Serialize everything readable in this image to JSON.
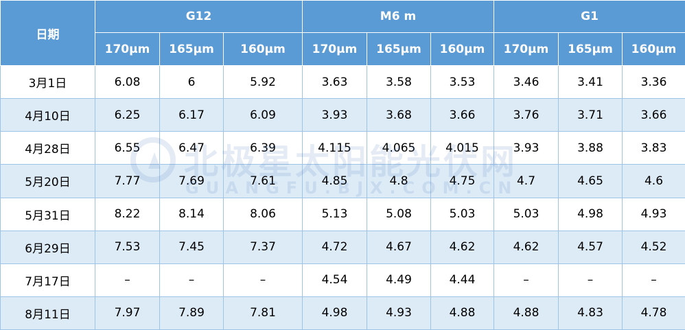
{
  "header": {
    "date_label": "日期",
    "groups": [
      "G12",
      "M6 m",
      "G1"
    ],
    "thicknesses": [
      "170μm",
      "165μm",
      "160μm",
      "170μm",
      "165μm",
      "160μm",
      "170μm",
      "165μm",
      "160μm"
    ]
  },
  "rows": [
    {
      "date": "3月1日",
      "values": [
        "6.08",
        "6",
        "5.92",
        "3.63",
        "3.58",
        "3.53",
        "3.46",
        "3.41",
        "3.36"
      ]
    },
    {
      "date": "4月10日",
      "values": [
        "6.25",
        "6.17",
        "6.09",
        "3.93",
        "3.68",
        "3.66",
        "3.76",
        "3.71",
        "3.66"
      ]
    },
    {
      "date": "4月28日",
      "values": [
        "6.55",
        "6.47",
        "6.39",
        "4.115",
        "4.065",
        "4.015",
        "3.93",
        "3.88",
        "3.83"
      ]
    },
    {
      "date": "5月20日",
      "values": [
        "7.77",
        "7.69",
        "7.61",
        "4.85",
        "4.8",
        "4.75",
        "4.7",
        "4.65",
        "4.6"
      ]
    },
    {
      "date": "5月31日",
      "values": [
        "8.22",
        "8.14",
        "8.06",
        "5.13",
        "5.08",
        "5.03",
        "5.03",
        "4.98",
        "4.93"
      ]
    },
    {
      "date": "6月29日",
      "values": [
        "7.53",
        "7.45",
        "7.37",
        "4.72",
        "4.67",
        "4.62",
        "4.62",
        "4.57",
        "4.52"
      ]
    },
    {
      "date": "7月17日",
      "values": [
        "–",
        "–",
        "–",
        "4.54",
        "4.49",
        "4.44",
        "–",
        "–",
        "–"
      ]
    },
    {
      "date": "8月11日",
      "values": [
        "7.97",
        "7.89",
        "7.81",
        "4.98",
        "4.93",
        "4.88",
        "4.88",
        "4.83",
        "4.78"
      ]
    }
  ],
  "watermark": {
    "text": "北极星太阳能光伏网",
    "subtext": "GUANGFU.BJX.COM.CN",
    "color": "#3a6fb5"
  },
  "colors": {
    "header_bg": "#5b9bd5",
    "stripe_bg": "#ddebf7",
    "border": "#9dc3e6"
  }
}
